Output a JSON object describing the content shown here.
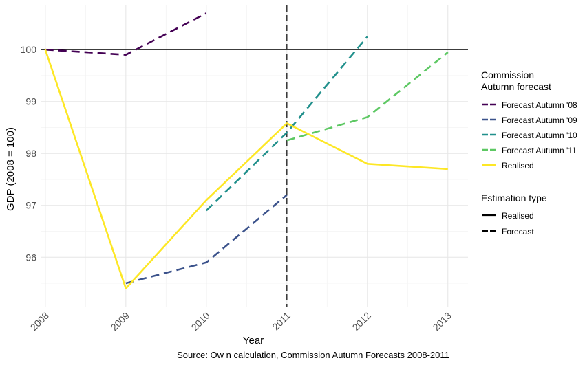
{
  "chart_data": {
    "type": "line",
    "xlabel": "Year",
    "ylabel": "GDP (2008 = 100)",
    "caption": "Source: Ow n calculation, Commission Autumn Forecasts 2008-2011",
    "x_ticks": [
      2008,
      2009,
      2010,
      2011,
      2012,
      2013
    ],
    "y_ticks": [
      96,
      97,
      98,
      99,
      100
    ],
    "xlim": [
      2007.95,
      2013.25
    ],
    "ylim": [
      95.05,
      100.85
    ],
    "reference_hline": 100,
    "reference_vline": 2011,
    "grid": true,
    "legend_position": "right",
    "legend_colour_title": [
      "Commission",
      "Autumn forecast"
    ],
    "legend_linetype_title": "Estimation type",
    "linetype_entries": [
      {
        "label": "Realised",
        "dashed": false
      },
      {
        "label": "Forecast",
        "dashed": true
      }
    ],
    "series": [
      {
        "name": "Forecast Autumn '08",
        "color": "#440154",
        "dashed": true,
        "points": [
          [
            2008,
            100.0
          ],
          [
            2009,
            99.9
          ],
          [
            2010,
            100.7
          ]
        ]
      },
      {
        "name": "Forecast Autumn '09",
        "color": "#3B528B",
        "dashed": true,
        "points": [
          [
            2009,
            95.5
          ],
          [
            2010,
            95.9
          ],
          [
            2011,
            97.2
          ]
        ]
      },
      {
        "name": "Forecast Autumn '10",
        "color": "#21908C",
        "dashed": true,
        "points": [
          [
            2010,
            96.9
          ],
          [
            2011,
            98.4
          ],
          [
            2012,
            100.25
          ]
        ]
      },
      {
        "name": "Forecast Autumn '11",
        "color": "#5DC863",
        "dashed": true,
        "points": [
          [
            2011,
            98.25
          ],
          [
            2012,
            98.7
          ],
          [
            2013,
            99.95
          ]
        ]
      },
      {
        "name": "Realised",
        "color": "#FDE725",
        "dashed": false,
        "points": [
          [
            2008,
            100.0
          ],
          [
            2009,
            95.4
          ],
          [
            2010,
            97.1
          ],
          [
            2011,
            98.58
          ],
          [
            2012,
            97.8
          ],
          [
            2013,
            97.7
          ]
        ]
      }
    ]
  }
}
